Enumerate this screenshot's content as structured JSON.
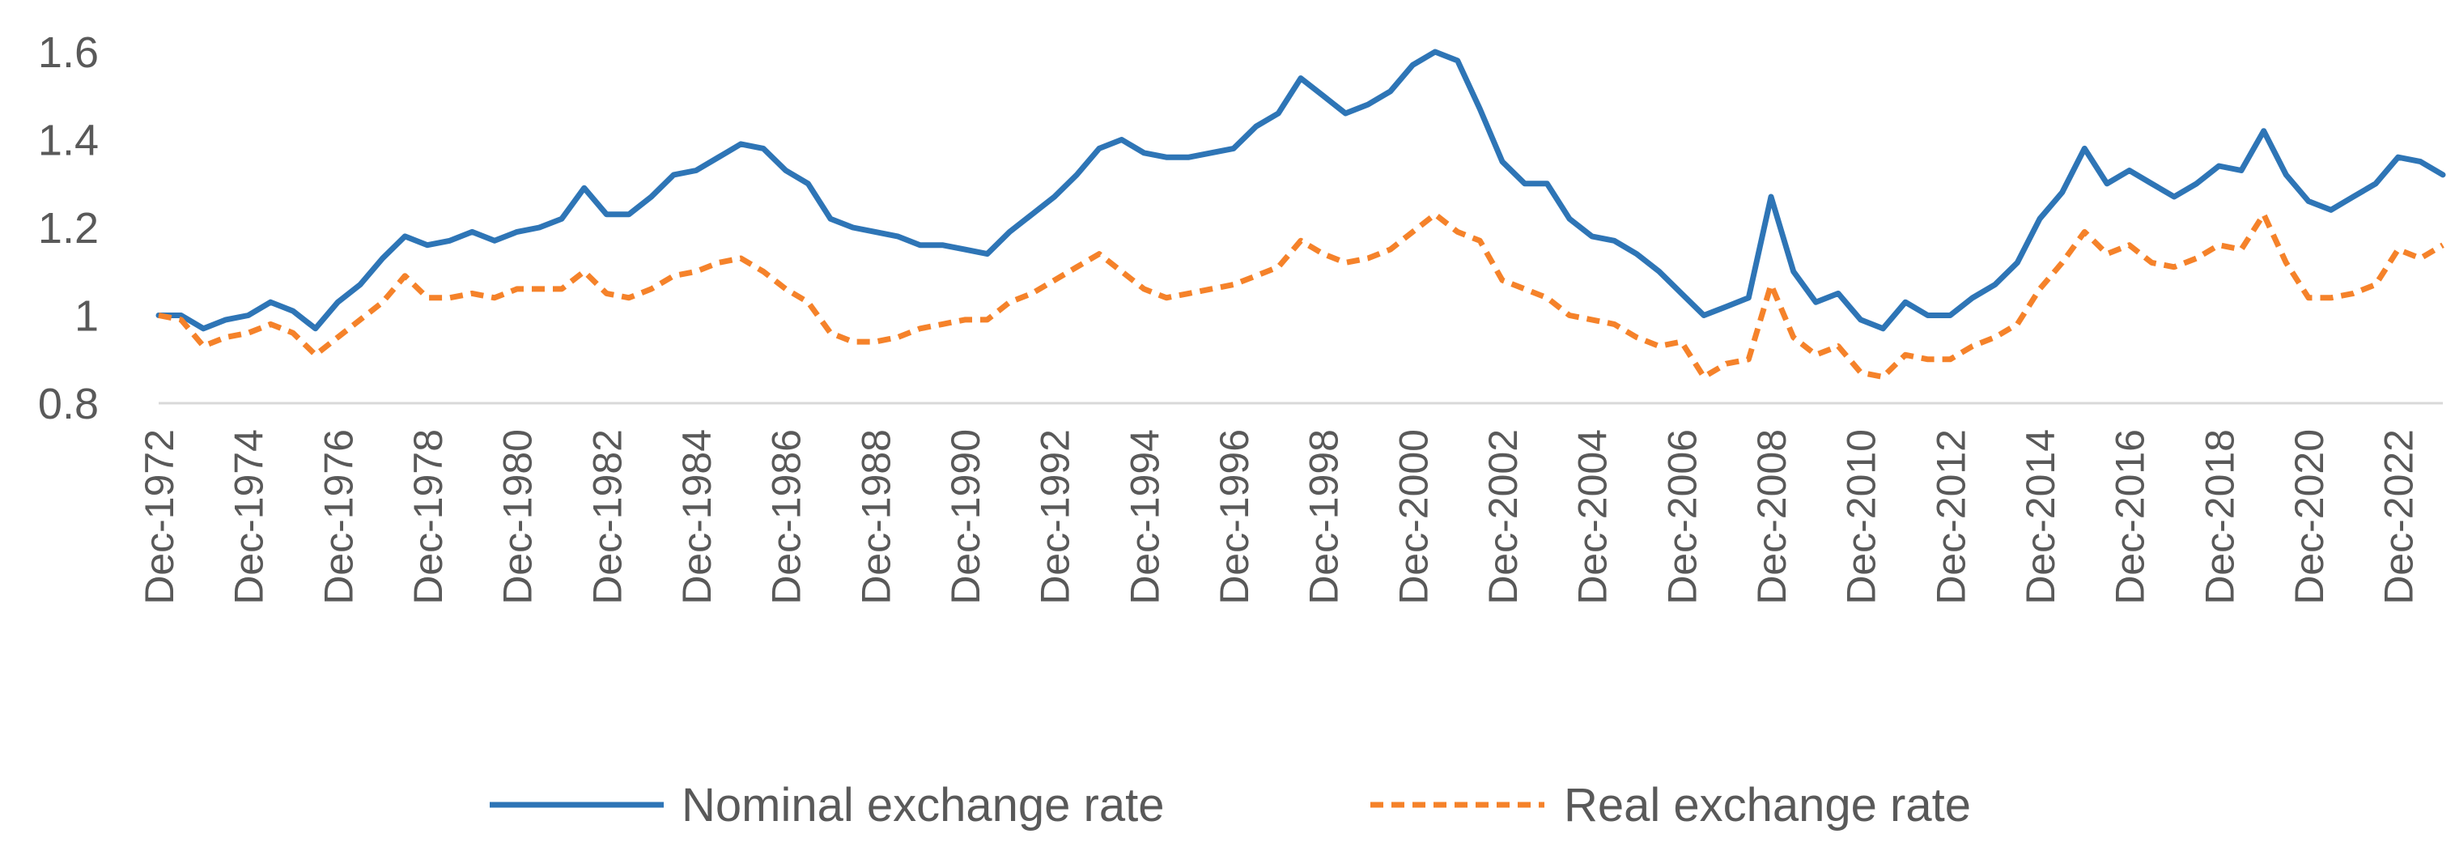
{
  "chart_data": {
    "type": "line",
    "title": "",
    "xlabel": "",
    "ylabel": "",
    "ylim": [
      0.8,
      1.6
    ],
    "y_ticks": [
      "0.8",
      "1",
      "1.2",
      "1.4",
      "1.6"
    ],
    "x_tick_labels": [
      "Dec-1972",
      "Dec-1974",
      "Dec-1976",
      "Dec-1978",
      "Dec-1980",
      "Dec-1982",
      "Dec-1984",
      "Dec-1986",
      "Dec-1988",
      "Dec-1990",
      "Dec-1992",
      "Dec-1994",
      "Dec-1996",
      "Dec-1998",
      "Dec-2000",
      "Dec-2002",
      "Dec-2004",
      "Dec-2006",
      "Dec-2008",
      "Dec-2010",
      "Dec-2012",
      "Dec-2014",
      "Dec-2016",
      "Dec-2018",
      "Dec-2020",
      "Dec-2022"
    ],
    "x_start": "Dec-1972",
    "x_end": "Dec-2023",
    "grid": false,
    "legend_position": "bottom",
    "series": [
      {
        "name": "Nominal exchange rate",
        "color": "#2E75B6",
        "style": "solid",
        "points": [
          [
            "Dec-1972",
            1.0
          ],
          [
            "Jun-1973",
            1.0
          ],
          [
            "Dec-1973",
            0.97
          ],
          [
            "Jun-1974",
            0.99
          ],
          [
            "Dec-1974",
            1.0
          ],
          [
            "Jun-1975",
            1.03
          ],
          [
            "Dec-1975",
            1.01
          ],
          [
            "Jun-1976",
            0.97
          ],
          [
            "Dec-1976",
            1.03
          ],
          [
            "Jun-1977",
            1.07
          ],
          [
            "Dec-1977",
            1.13
          ],
          [
            "Jun-1978",
            1.18
          ],
          [
            "Dec-1978",
            1.16
          ],
          [
            "Jun-1979",
            1.17
          ],
          [
            "Dec-1979",
            1.19
          ],
          [
            "Jun-1980",
            1.17
          ],
          [
            "Dec-1980",
            1.19
          ],
          [
            "Jun-1981",
            1.2
          ],
          [
            "Dec-1981",
            1.22
          ],
          [
            "Jun-1982",
            1.29
          ],
          [
            "Dec-1982",
            1.23
          ],
          [
            "Jun-1983",
            1.23
          ],
          [
            "Dec-1983",
            1.27
          ],
          [
            "Jun-1984",
            1.32
          ],
          [
            "Dec-1984",
            1.33
          ],
          [
            "Jun-1985",
            1.36
          ],
          [
            "Dec-1985",
            1.39
          ],
          [
            "Jun-1986",
            1.38
          ],
          [
            "Dec-1986",
            1.33
          ],
          [
            "Jun-1987",
            1.3
          ],
          [
            "Dec-1987",
            1.22
          ],
          [
            "Jun-1988",
            1.2
          ],
          [
            "Dec-1988",
            1.19
          ],
          [
            "Jun-1989",
            1.18
          ],
          [
            "Dec-1989",
            1.16
          ],
          [
            "Jun-1990",
            1.16
          ],
          [
            "Dec-1990",
            1.15
          ],
          [
            "Jun-1991",
            1.14
          ],
          [
            "Dec-1991",
            1.19
          ],
          [
            "Jun-1992",
            1.23
          ],
          [
            "Dec-1992",
            1.27
          ],
          [
            "Jun-1993",
            1.32
          ],
          [
            "Dec-1993",
            1.38
          ],
          [
            "Jun-1994",
            1.4
          ],
          [
            "Dec-1994",
            1.37
          ],
          [
            "Jun-1995",
            1.36
          ],
          [
            "Dec-1995",
            1.36
          ],
          [
            "Jun-1996",
            1.37
          ],
          [
            "Dec-1996",
            1.38
          ],
          [
            "Jun-1997",
            1.43
          ],
          [
            "Dec-1997",
            1.46
          ],
          [
            "Jun-1998",
            1.54
          ],
          [
            "Dec-1998",
            1.5
          ],
          [
            "Jun-1999",
            1.46
          ],
          [
            "Dec-1999",
            1.48
          ],
          [
            "Jun-2000",
            1.51
          ],
          [
            "Dec-2000",
            1.57
          ],
          [
            "Jun-2001",
            1.6
          ],
          [
            "Dec-2001",
            1.58
          ],
          [
            "Jun-2002",
            1.47
          ],
          [
            "Dec-2002",
            1.35
          ],
          [
            "Jun-2003",
            1.3
          ],
          [
            "Dec-2003",
            1.3
          ],
          [
            "Jun-2004",
            1.22
          ],
          [
            "Dec-2004",
            1.18
          ],
          [
            "Jun-2005",
            1.17
          ],
          [
            "Dec-2005",
            1.14
          ],
          [
            "Jun-2006",
            1.1
          ],
          [
            "Dec-2006",
            1.05
          ],
          [
            "Jun-2007",
            1.0
          ],
          [
            "Dec-2007",
            1.02
          ],
          [
            "Jun-2008",
            1.04
          ],
          [
            "Dec-2008",
            1.27
          ],
          [
            "Jun-2009",
            1.1
          ],
          [
            "Dec-2009",
            1.03
          ],
          [
            "Jun-2010",
            1.05
          ],
          [
            "Dec-2010",
            0.99
          ],
          [
            "Jun-2011",
            0.97
          ],
          [
            "Dec-2011",
            1.03
          ],
          [
            "Jun-2012",
            1.0
          ],
          [
            "Dec-2012",
            1.0
          ],
          [
            "Jun-2013",
            1.04
          ],
          [
            "Dec-2013",
            1.07
          ],
          [
            "Jun-2014",
            1.12
          ],
          [
            "Dec-2014",
            1.22
          ],
          [
            "Jun-2015",
            1.28
          ],
          [
            "Dec-2015",
            1.38
          ],
          [
            "Jun-2016",
            1.3
          ],
          [
            "Dec-2016",
            1.33
          ],
          [
            "Jun-2017",
            1.3
          ],
          [
            "Dec-2017",
            1.27
          ],
          [
            "Jun-2018",
            1.3
          ],
          [
            "Dec-2018",
            1.34
          ],
          [
            "Jun-2019",
            1.33
          ],
          [
            "Dec-2019",
            1.42
          ],
          [
            "Jun-2020",
            1.32
          ],
          [
            "Dec-2020",
            1.26
          ],
          [
            "Jun-2021",
            1.24
          ],
          [
            "Dec-2021",
            1.27
          ],
          [
            "Jun-2022",
            1.3
          ],
          [
            "Dec-2022",
            1.36
          ],
          [
            "Jun-2023",
            1.35
          ],
          [
            "Dec-2023",
            1.32
          ]
        ]
      },
      {
        "name": "Real exchange rate",
        "color": "#F5822A",
        "style": "dashed",
        "points": [
          [
            "Dec-1972",
            1.0
          ],
          [
            "Jun-1973",
            0.99
          ],
          [
            "Dec-1973",
            0.93
          ],
          [
            "Jun-1974",
            0.95
          ],
          [
            "Dec-1974",
            0.96
          ],
          [
            "Jun-1975",
            0.98
          ],
          [
            "Dec-1975",
            0.96
          ],
          [
            "Jun-1976",
            0.91
          ],
          [
            "Dec-1976",
            0.95
          ],
          [
            "Jun-1977",
            0.99
          ],
          [
            "Dec-1977",
            1.03
          ],
          [
            "Jun-1978",
            1.09
          ],
          [
            "Dec-1978",
            1.04
          ],
          [
            "Jun-1979",
            1.04
          ],
          [
            "Dec-1979",
            1.05
          ],
          [
            "Jun-1980",
            1.04
          ],
          [
            "Dec-1980",
            1.06
          ],
          [
            "Jun-1981",
            1.06
          ],
          [
            "Dec-1981",
            1.06
          ],
          [
            "Jun-1982",
            1.1
          ],
          [
            "Dec-1982",
            1.05
          ],
          [
            "Jun-1983",
            1.04
          ],
          [
            "Dec-1983",
            1.06
          ],
          [
            "Jun-1984",
            1.09
          ],
          [
            "Dec-1984",
            1.1
          ],
          [
            "Jun-1985",
            1.12
          ],
          [
            "Dec-1985",
            1.13
          ],
          [
            "Jun-1986",
            1.1
          ],
          [
            "Dec-1986",
            1.06
          ],
          [
            "Jun-1987",
            1.03
          ],
          [
            "Dec-1987",
            0.96
          ],
          [
            "Jun-1988",
            0.94
          ],
          [
            "Dec-1988",
            0.94
          ],
          [
            "Jun-1989",
            0.95
          ],
          [
            "Dec-1989",
            0.97
          ],
          [
            "Jun-1990",
            0.98
          ],
          [
            "Dec-1990",
            0.99
          ],
          [
            "Jun-1991",
            0.99
          ],
          [
            "Dec-1991",
            1.03
          ],
          [
            "Jun-1992",
            1.05
          ],
          [
            "Dec-1992",
            1.08
          ],
          [
            "Jun-1993",
            1.11
          ],
          [
            "Dec-1993",
            1.14
          ],
          [
            "Jun-1994",
            1.1
          ],
          [
            "Dec-1994",
            1.06
          ],
          [
            "Jun-1995",
            1.04
          ],
          [
            "Dec-1995",
            1.05
          ],
          [
            "Jun-1996",
            1.06
          ],
          [
            "Dec-1996",
            1.07
          ],
          [
            "Jun-1997",
            1.09
          ],
          [
            "Dec-1997",
            1.11
          ],
          [
            "Jun-1998",
            1.17
          ],
          [
            "Dec-1998",
            1.14
          ],
          [
            "Jun-1999",
            1.12
          ],
          [
            "Dec-1999",
            1.13
          ],
          [
            "Jun-2000",
            1.15
          ],
          [
            "Dec-2000",
            1.19
          ],
          [
            "Jun-2001",
            1.23
          ],
          [
            "Dec-2001",
            1.19
          ],
          [
            "Jun-2002",
            1.17
          ],
          [
            "Dec-2002",
            1.08
          ],
          [
            "Jun-2003",
            1.06
          ],
          [
            "Dec-2003",
            1.04
          ],
          [
            "Jun-2004",
            1.0
          ],
          [
            "Dec-2004",
            0.99
          ],
          [
            "Jun-2005",
            0.98
          ],
          [
            "Dec-2005",
            0.95
          ],
          [
            "Jun-2006",
            0.93
          ],
          [
            "Dec-2006",
            0.94
          ],
          [
            "Jun-2007",
            0.86
          ],
          [
            "Dec-2007",
            0.89
          ],
          [
            "Jun-2008",
            0.9
          ],
          [
            "Dec-2008",
            1.07
          ],
          [
            "Jun-2009",
            0.95
          ],
          [
            "Dec-2009",
            0.91
          ],
          [
            "Jun-2010",
            0.93
          ],
          [
            "Dec-2010",
            0.87
          ],
          [
            "Jun-2011",
            0.86
          ],
          [
            "Dec-2011",
            0.91
          ],
          [
            "Jun-2012",
            0.9
          ],
          [
            "Dec-2012",
            0.9
          ],
          [
            "Jun-2013",
            0.93
          ],
          [
            "Dec-2013",
            0.95
          ],
          [
            "Jun-2014",
            0.98
          ],
          [
            "Dec-2014",
            1.06
          ],
          [
            "Jun-2015",
            1.12
          ],
          [
            "Dec-2015",
            1.19
          ],
          [
            "Jun-2016",
            1.14
          ],
          [
            "Dec-2016",
            1.16
          ],
          [
            "Jun-2017",
            1.12
          ],
          [
            "Dec-2017",
            1.11
          ],
          [
            "Jun-2018",
            1.13
          ],
          [
            "Dec-2018",
            1.16
          ],
          [
            "Jun-2019",
            1.15
          ],
          [
            "Dec-2019",
            1.23
          ],
          [
            "Jun-2020",
            1.12
          ],
          [
            "Dec-2020",
            1.04
          ],
          [
            "Jun-2021",
            1.04
          ],
          [
            "Dec-2021",
            1.05
          ],
          [
            "Jun-2022",
            1.07
          ],
          [
            "Dec-2022",
            1.15
          ],
          [
            "Jun-2023",
            1.13
          ],
          [
            "Dec-2023",
            1.16
          ]
        ]
      }
    ]
  }
}
